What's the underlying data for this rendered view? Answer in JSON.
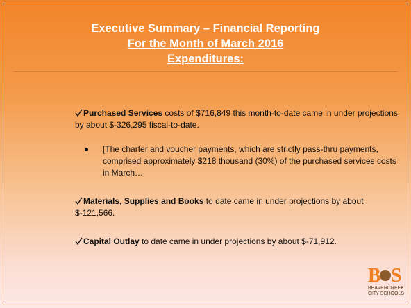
{
  "title": [
    "Executive Summary – Financial Reporting",
    "For the Month of March 2016",
    "Expenditures:"
  ],
  "items": [
    {
      "bold": "Purchased Services",
      "text": " costs of $716,849 this month-to-date came in under projections by about $-326,295 fiscal-to-date."
    },
    {
      "bullet": "[The charter and voucher payments, which are strictly pass-thru payments, comprised approximately $218 thousand (30%) of the purchased services costs in March…"
    },
    {
      "bold": "Materials, Supplies and Books",
      "text": " to date came in under projections by about $-121,566."
    },
    {
      "bold": "Capital Outlay",
      "text": " to date came in under projections by about $-71,912."
    }
  ],
  "logo": {
    "letter1": "B",
    "letter2": "S",
    "line1": "BEAVERCREEK",
    "line2": "CITY SCHOOLS"
  }
}
